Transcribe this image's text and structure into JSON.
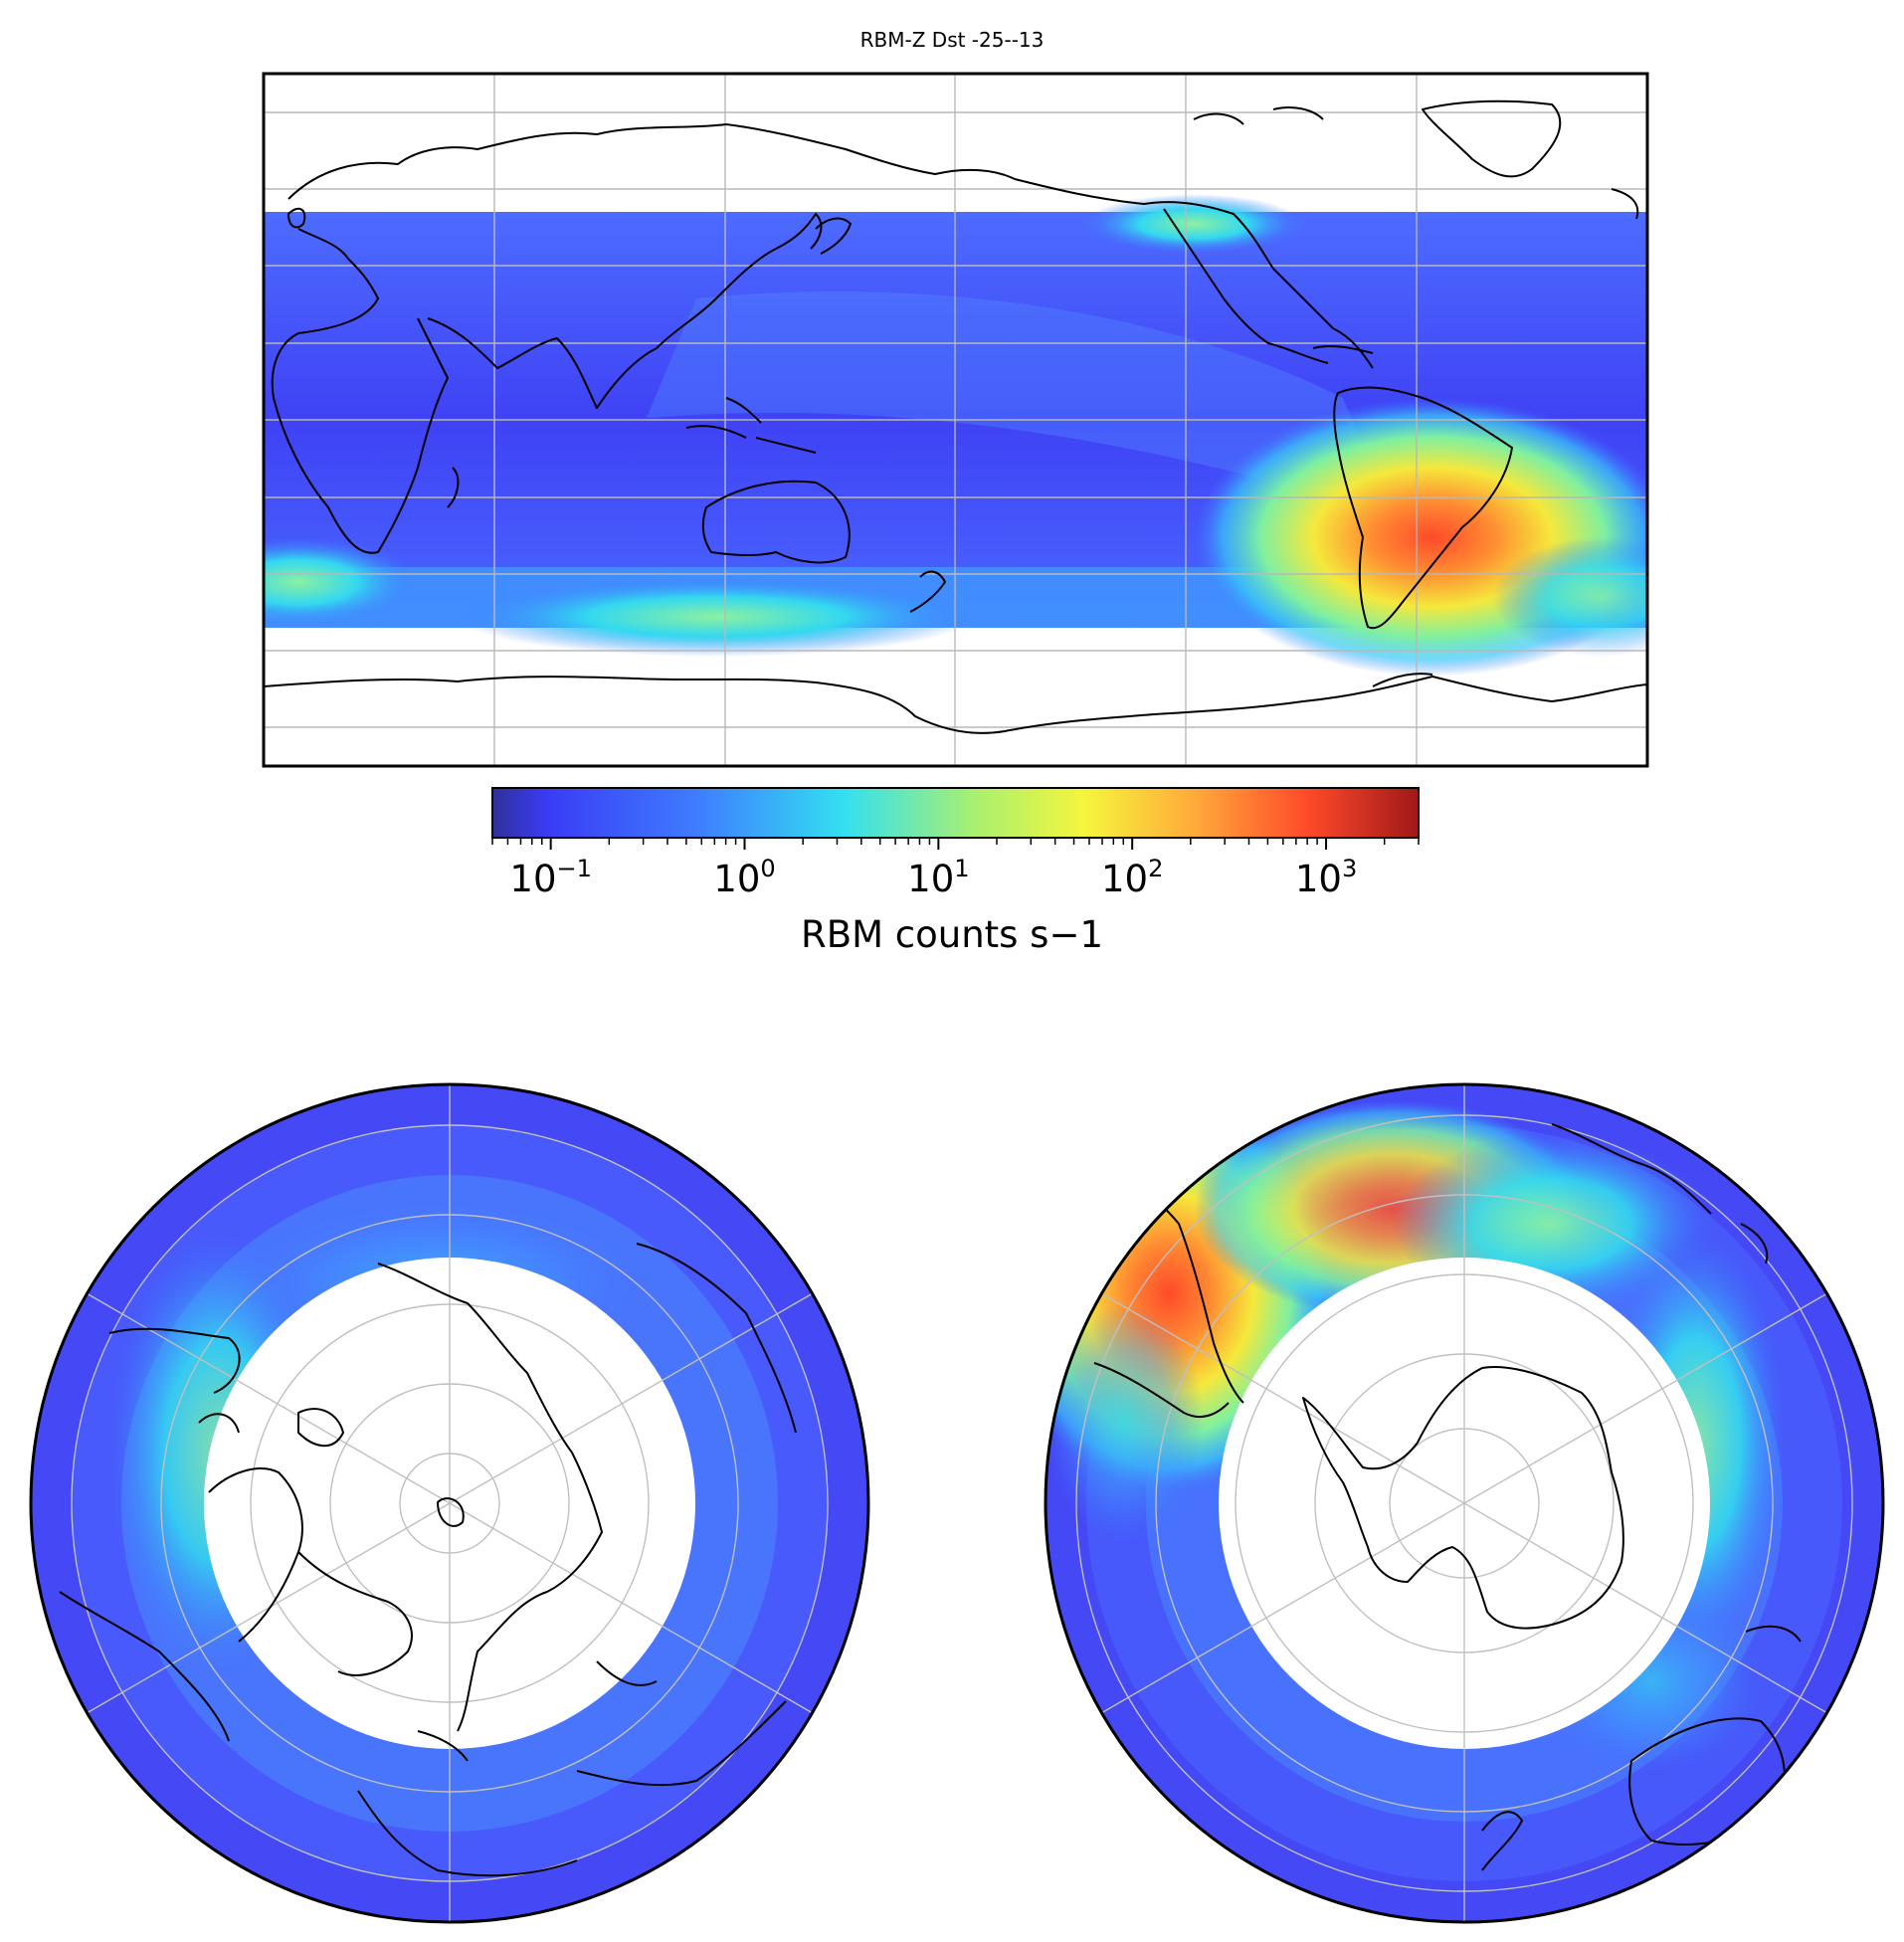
{
  "figure": {
    "title": "RBM-Z Dst -25--13"
  },
  "colorbar": {
    "label": "RBM counts s−1",
    "scale": "log",
    "range": [
      0.05,
      3000
    ],
    "ticks": [
      {
        "base": "10",
        "exp": "−1",
        "value": 0.1
      },
      {
        "base": "10",
        "exp": "0",
        "value": 1
      },
      {
        "base": "10",
        "exp": "1",
        "value": 10
      },
      {
        "base": "10",
        "exp": "2",
        "value": 100
      },
      {
        "base": "10",
        "exp": "3",
        "value": 1000
      }
    ],
    "colormap": [
      "#30309a",
      "#3a3cf5",
      "#3f7cff",
      "#33e0f0",
      "#a8f070",
      "#f5f53c",
      "#ffa83a",
      "#ff4a2a",
      "#a01818"
    ]
  },
  "maps": [
    {
      "name": "global-map",
      "projection": "equirectangular",
      "data_lat_range": [
        -63,
        64
      ]
    },
    {
      "name": "north-polar-map",
      "projection": "north-polar-stereographic",
      "data_lat_range": [
        -60,
        50
      ]
    },
    {
      "name": "south-polar-map",
      "projection": "south-polar-stereographic",
      "data_lat_range": [
        -50,
        60
      ]
    }
  ]
}
